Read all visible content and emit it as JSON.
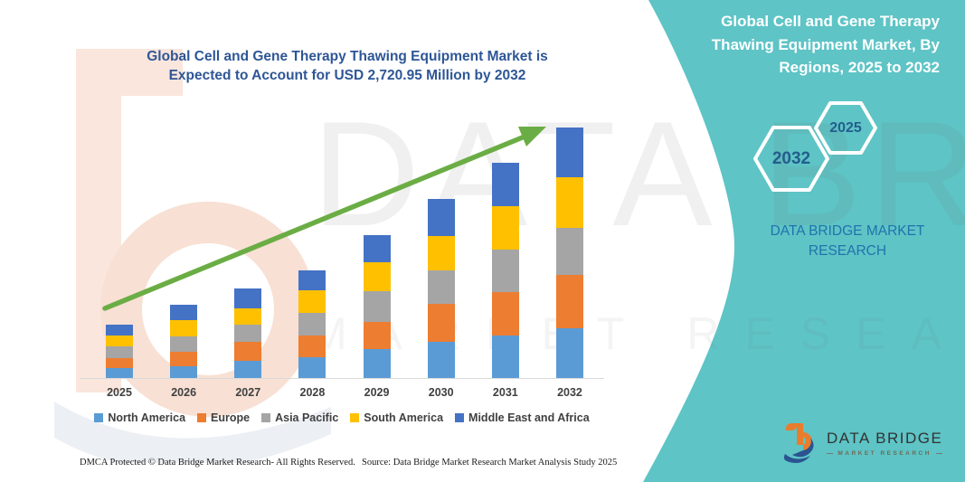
{
  "page": {
    "title_line1": "Global Cell and Gene Therapy Thawing Equipment Market is",
    "title_line2": "Expected to Account for USD 2,720.95 Million by 2032"
  },
  "right_panel": {
    "title_lines": [
      "Global Cell and Gene Therapy",
      "Thawing Equipment Market, By",
      "Regions, 2025 to 2032"
    ],
    "hexagons": [
      {
        "label": "2032"
      },
      {
        "label": "2025"
      }
    ],
    "brand_line1": "DATA BRIDGE MARKET",
    "brand_line2": "RESEARCH"
  },
  "watermark": {
    "title": "DATA BRIDGE",
    "subtitle": "MARKET RESEARCH"
  },
  "colors": {
    "teal_panel": "#5EC4C6",
    "title_blue": "#2E5696",
    "arrow_green": "#6BAD45"
  },
  "chart_data": {
    "type": "bar",
    "stacked": true,
    "title": "Global Cell and Gene Therapy Thawing Equipment Market is Expected to Account for USD 2,720.95 Million by 2032",
    "unit": "USD Million",
    "categories": [
      "2025",
      "2026",
      "2027",
      "2028",
      "2029",
      "2030",
      "2031",
      "2032"
    ],
    "series": [
      {
        "name": "North America",
        "color": "#5B9BD5",
        "values": [
          110,
          130,
          187,
          226,
          314,
          393,
          462,
          540
        ]
      },
      {
        "name": "Europe",
        "color": "#ED7D31",
        "values": [
          110,
          155,
          206,
          236,
          295,
          413,
          471,
          580
        ]
      },
      {
        "name": "Asia Pacific",
        "color": "#A5A5A5",
        "values": [
          120,
          170,
          187,
          245,
          334,
          363,
          462,
          511
        ]
      },
      {
        "name": "South America",
        "color": "#FFC000",
        "values": [
          125,
          175,
          177,
          246,
          314,
          373,
          471,
          550
        ]
      },
      {
        "name": "Middle East and Africa",
        "color": "#4472C4",
        "values": [
          115,
          166,
          216,
          216,
          295,
          403,
          472,
          539.95
        ]
      }
    ],
    "totals": [
      580,
      796,
      973,
      1169,
      1552,
      1945,
      2338,
      2720.95
    ],
    "ylim": [
      0,
      2800
    ],
    "xlabel": "",
    "ylabel": "",
    "grid": false,
    "legend_position": "bottom",
    "annotations": [
      "green upward trend arrow from 2025 to 2032"
    ]
  },
  "footer": {
    "dmca": "DMCA Protected © Data Bridge Market Research-  All Rights Reserved.",
    "source": "Source: Data Bridge Market Research  Market Analysis Study 2025"
  },
  "logo": {
    "name": "DATA BRIDGE",
    "tagline": "MARKET RESEARCH"
  }
}
